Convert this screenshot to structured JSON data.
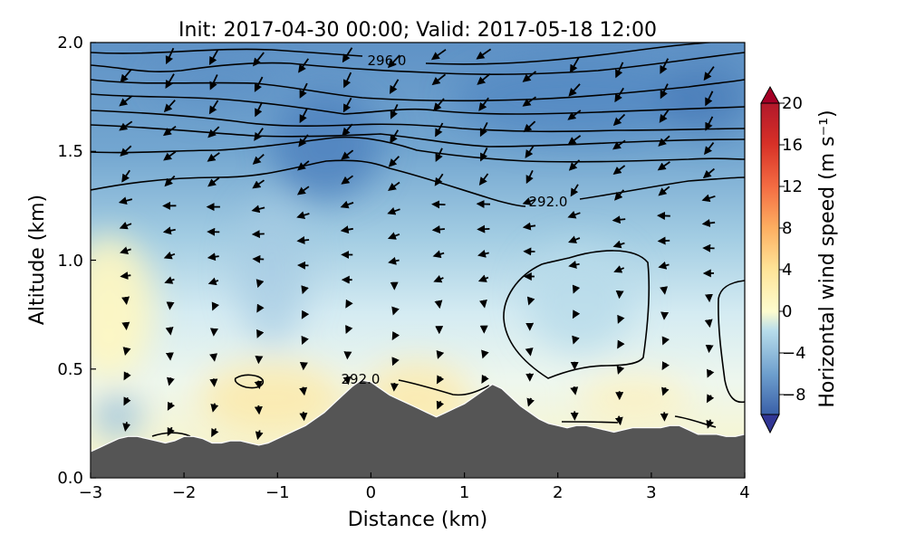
{
  "chart_data": {
    "type": "heatmap",
    "title": "Init: 2017-04-30 00:00; Valid: 2017-05-18 12:00",
    "xlabel": "Distance (km)",
    "ylabel": "Altitude (km)",
    "xlim": [
      -3,
      4
    ],
    "ylim": [
      0,
      2.0
    ],
    "xticks": [
      "−3",
      "−2",
      "−1",
      "0",
      "1",
      "2",
      "3",
      "4"
    ],
    "yticks": [
      "0.0",
      "0.5",
      "1.0",
      "1.5",
      "2.0"
    ],
    "colorbar": {
      "label": "Horizontal wind speed (m s⁻¹)",
      "ticks": [
        "−8",
        "−4",
        "0",
        "4",
        "8",
        "12",
        "16",
        "20"
      ],
      "range": [
        -10,
        20
      ],
      "colormap": "RdYlBu_r",
      "extend": "both"
    },
    "contour_labels": [
      "296.0",
      "292.0",
      "292.0"
    ],
    "terrain_color": "#555555",
    "terrain": {
      "x": [
        -3,
        -2.9,
        -2.8,
        -2.7,
        -2.6,
        -2.5,
        -2.4,
        -2.3,
        -2.2,
        -2.1,
        -2.0,
        -1.9,
        -1.8,
        -1.7,
        -1.6,
        -1.5,
        -1.4,
        -1.3,
        -1.2,
        -1.1,
        -1.0,
        -0.9,
        -0.8,
        -0.7,
        -0.6,
        -0.5,
        -0.4,
        -0.3,
        -0.2,
        -0.1,
        0.0,
        0.1,
        0.2,
        0.3,
        0.4,
        0.5,
        0.6,
        0.7,
        0.8,
        0.9,
        1.0,
        1.1,
        1.2,
        1.3,
        1.4,
        1.5,
        1.6,
        1.7,
        1.8,
        1.9,
        2.0,
        2.1,
        2.2,
        2.3,
        2.4,
        2.5,
        2.6,
        2.7,
        2.8,
        2.9,
        3.0,
        3.1,
        3.2,
        3.3,
        3.4,
        3.5,
        3.6,
        3.7,
        3.8,
        3.9,
        4.0
      ],
      "y": [
        0.12,
        0.14,
        0.16,
        0.18,
        0.19,
        0.19,
        0.18,
        0.17,
        0.16,
        0.17,
        0.19,
        0.19,
        0.18,
        0.16,
        0.16,
        0.17,
        0.17,
        0.16,
        0.15,
        0.16,
        0.18,
        0.2,
        0.22,
        0.24,
        0.27,
        0.3,
        0.34,
        0.38,
        0.42,
        0.45,
        0.44,
        0.41,
        0.38,
        0.36,
        0.34,
        0.32,
        0.3,
        0.28,
        0.3,
        0.32,
        0.34,
        0.37,
        0.4,
        0.43,
        0.41,
        0.37,
        0.33,
        0.3,
        0.27,
        0.25,
        0.24,
        0.23,
        0.24,
        0.24,
        0.23,
        0.22,
        0.21,
        0.22,
        0.23,
        0.23,
        0.23,
        0.23,
        0.24,
        0.24,
        0.22,
        0.2,
        0.2,
        0.2,
        0.19,
        0.19,
        0.2
      ]
    }
  }
}
